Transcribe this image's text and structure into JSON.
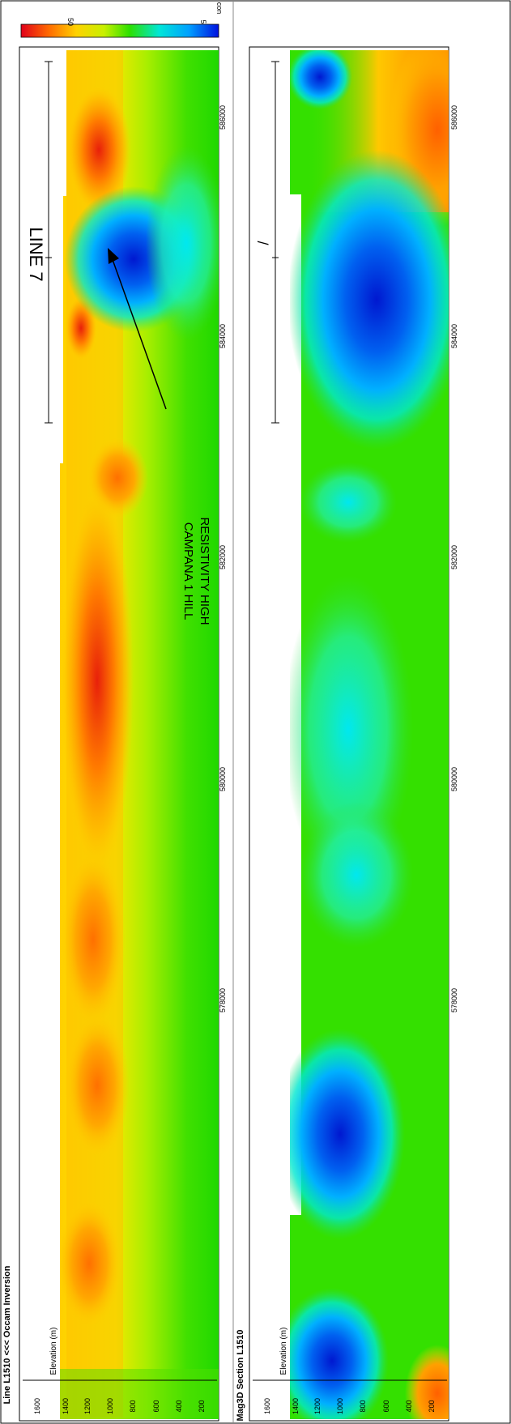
{
  "colorbar": {
    "label_50": "50",
    "label_5": "5",
    "unit": "con",
    "colors": [
      "#e0001a",
      "#ff7a00",
      "#ffd200",
      "#c8f000",
      "#2ce000",
      "#00e6d8",
      "#00a0ff",
      "#0010e0"
    ]
  },
  "top_panel": {
    "title": "Line L1510 <<< Occam Inversion",
    "ylabel": "Elevation (m)",
    "yticks": [
      "200",
      "400",
      "600",
      "800",
      "1000",
      "1200",
      "1400",
      "1600"
    ],
    "xticks": [
      "578000",
      "580000",
      "582000",
      "584000",
      "586000"
    ],
    "line_label": "LINE 7",
    "annotation_line1": "CAMPANA 1 HILL",
    "annotation_line2": "RESISTIVITY HIGH"
  },
  "bottom_panel": {
    "title": "Mag3D Section L1510",
    "ylabel": "Elevation (m)",
    "yticks": [
      "200",
      "400",
      "600",
      "800",
      "1000",
      "1200",
      "1400",
      "1600"
    ],
    "xticks": [
      "578000",
      "580000",
      "582000",
      "584000",
      "586000"
    ],
    "line_label": "/"
  }
}
